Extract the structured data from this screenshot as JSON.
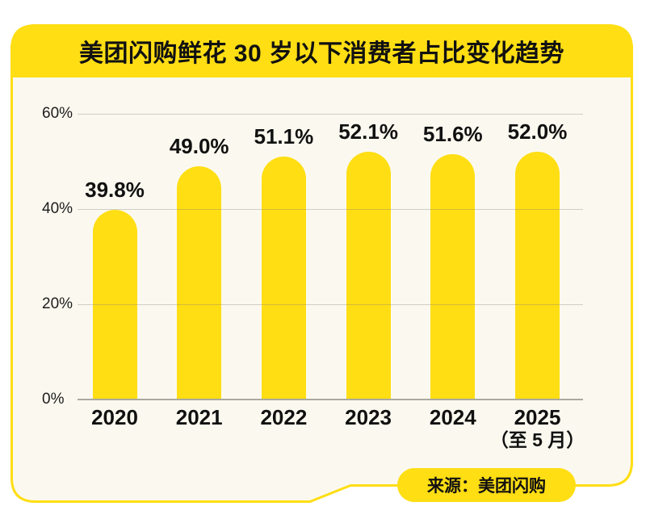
{
  "header": {
    "title": "美团闪购鲜花 30 岁以下消费者占比变化趋势"
  },
  "footer": {
    "source": "来源：美团闪购"
  },
  "colors": {
    "brand_yellow": "#FFDE14",
    "card_background": "#FBF9EF",
    "page_background": "#FFFFFF",
    "text": "#111111",
    "gridline": "#DEDED6",
    "axis_line": "#A9A9A1"
  },
  "chart_data": {
    "type": "bar",
    "title": "美团闪购鲜花 30 岁以下消费者占比变化趋势",
    "categories": [
      "2020",
      "2021",
      "2022",
      "2023",
      "2024",
      "2025"
    ],
    "category_subs": [
      "",
      "",
      "",
      "",
      "",
      "（至 5 月）"
    ],
    "values": [
      39.8,
      49.0,
      51.1,
      52.1,
      51.6,
      52.0
    ],
    "value_labels": [
      "39.8%",
      "49.0%",
      "51.1%",
      "52.1%",
      "51.6%",
      "52.0%"
    ],
    "y_ticks": [
      {
        "value": 0,
        "label": "0%"
      },
      {
        "value": 20,
        "label": "20%"
      },
      {
        "value": 40,
        "label": "40%"
      },
      {
        "value": 60,
        "label": "60%"
      }
    ],
    "ylim": [
      0,
      60
    ],
    "xlabel": "",
    "ylabel": "",
    "grid": true,
    "legend": "none",
    "bar_color": "#FFDE14",
    "source": "来源：美团闪购"
  }
}
